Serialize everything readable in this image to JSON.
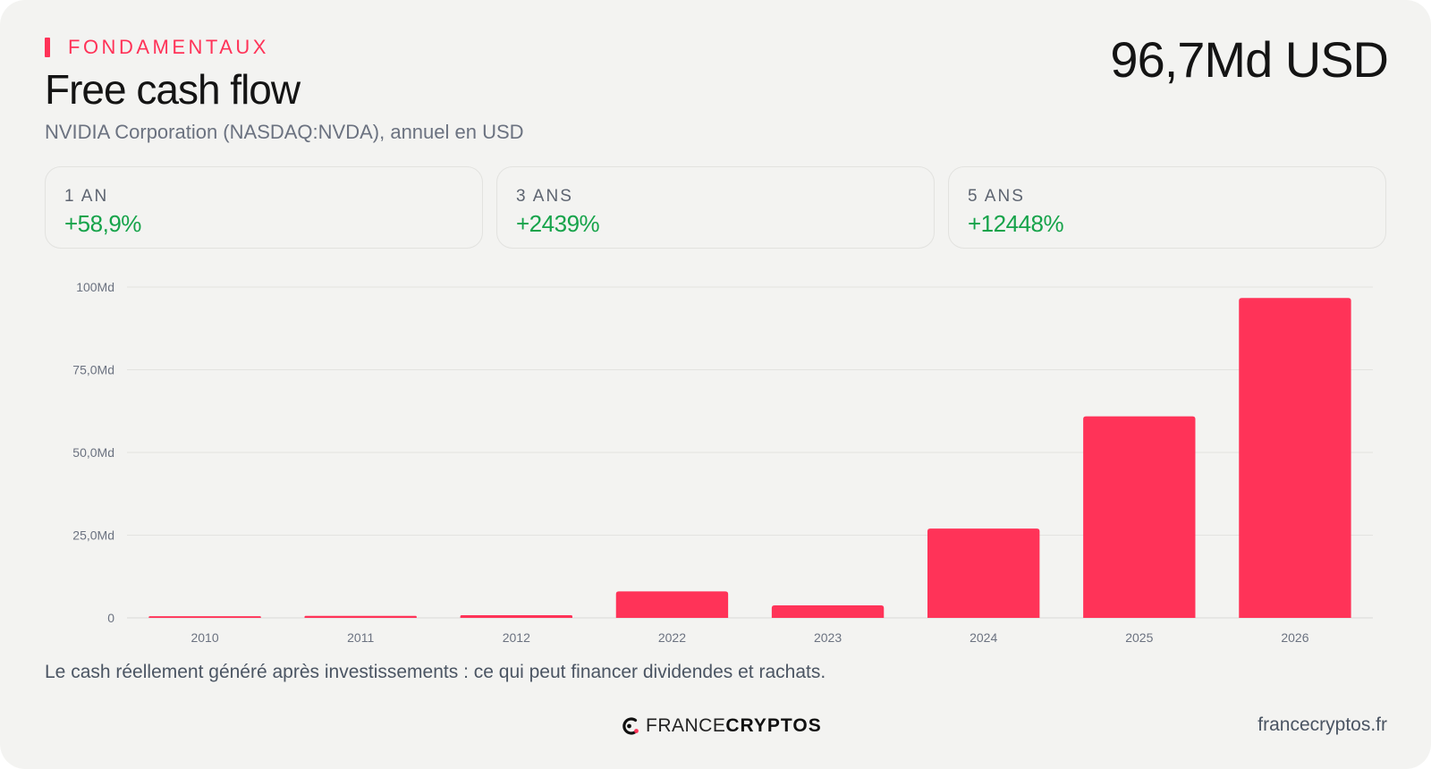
{
  "header": {
    "eyebrow": "FONDAMENTAUX",
    "title": "Free cash flow",
    "subtitle": "NVIDIA Corporation (NASDAQ:NVDA), annuel en USD",
    "headline_value": "96,7Md USD"
  },
  "stats": [
    {
      "label": "1 AN",
      "value": "+58,9%"
    },
    {
      "label": "3 ANS",
      "value": "+2439%"
    },
    {
      "label": "5 ANS",
      "value": "+12448%"
    }
  ],
  "chart_data": {
    "type": "bar",
    "categories": [
      "2010",
      "2011",
      "2012",
      "2022",
      "2023",
      "2024",
      "2025",
      "2026"
    ],
    "values": [
      0.5,
      0.6,
      0.8,
      8.0,
      3.8,
      27.0,
      60.9,
      96.7
    ],
    "unit": "Md USD",
    "ylim": [
      0,
      100
    ],
    "yticks": [
      0,
      25,
      50,
      75,
      100
    ],
    "ytick_labels": [
      "0",
      "25,0Md",
      "50,0Md",
      "75,0Md",
      "100Md"
    ],
    "grid": true,
    "legend": "none",
    "bar_color": "#ff3358"
  },
  "footer": {
    "caption": "Le cash réellement généré après investissements : ce qui peut financer dividendes et rachats.",
    "brand_light": "FRANCE",
    "brand_bold": "CRYPTOS",
    "site": "francecryptos.fr"
  },
  "colors": {
    "accent": "#ff3358",
    "positive": "#16a34a",
    "background": "#f3f3f1"
  }
}
